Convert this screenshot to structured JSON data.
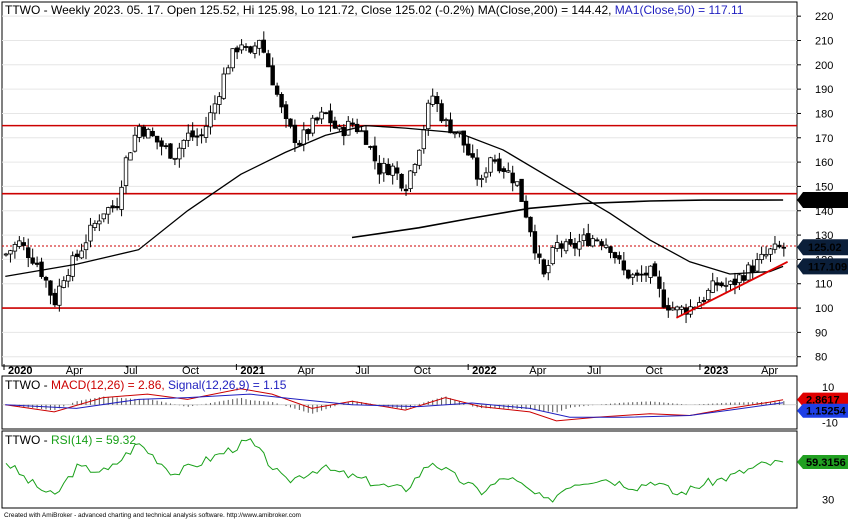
{
  "ticker": "TTWO",
  "header": {
    "part_1": "TTWO - Weekly 2023. 05. 17. Open 125.52, Hi 125.98, Lo 121.72, Close 125.02 (-0.2%) MA(Close,200) = 144.42, ",
    "part_2": "MA1(Close,50) = 117.11"
  },
  "macd_header": {
    "part_1": "TTWO - ",
    "part_2": "MACD(12,26) = 2.86, ",
    "part_3": "Signal(12,26,9) = 1.15"
  },
  "rsi_header": {
    "part_1": "TTWO - ",
    "part_2": "RSI(14) = 59.32"
  },
  "footer": "Created with AmiBroker - advanced charting and technical analysis software. http://www.amibroker.com",
  "colors": {
    "candle": "#000000",
    "ma200": "#000000",
    "ma50": "#000000",
    "support_resistance": "#cc0000",
    "trendline": "#dd0000",
    "macd": "#cc0000",
    "signal": "#1f1fbf",
    "rsi": "#19a019",
    "badge_close": "#0b1f3a",
    "badge_macd": "#e00000",
    "badge_signal": "#1e3fe6",
    "badge_rsi": "#22a022"
  },
  "chart_data": [
    {
      "panel": "price",
      "type": "candlestick",
      "ylim": [
        77,
        225
      ],
      "y_ticks": [
        80,
        90,
        100,
        110,
        120,
        130,
        140,
        150,
        160,
        170,
        180,
        190,
        200,
        210,
        220
      ],
      "x_labels": [
        "2020",
        "Apr",
        "Jul",
        "Oct",
        "2021",
        "Apr",
        "Jul",
        "Oct",
        "2022",
        "Apr",
        "Jul",
        "Oct",
        "2023",
        "Apr"
      ],
      "bold_x_labels": [
        "2020",
        "2021",
        "2022",
        "2023"
      ],
      "close_series": [
        [
          "2020-01-03",
          122
        ],
        [
          "2020-01-24",
          127
        ],
        [
          "2020-02-21",
          119
        ],
        [
          "2020-03-06",
          112
        ],
        [
          "2020-03-20",
          102
        ],
        [
          "2020-04-03",
          113
        ],
        [
          "2020-04-24",
          121
        ],
        [
          "2020-05-15",
          131
        ],
        [
          "2020-06-05",
          140
        ],
        [
          "2020-06-26",
          142
        ],
        [
          "2020-07-10",
          160
        ],
        [
          "2020-07-31",
          175
        ],
        [
          "2020-08-14",
          172
        ],
        [
          "2020-09-04",
          167
        ],
        [
          "2020-09-25",
          163
        ],
        [
          "2020-10-16",
          171
        ],
        [
          "2020-11-06",
          170
        ],
        [
          "2020-11-27",
          183
        ],
        [
          "2020-12-18",
          200
        ],
        [
          "2021-01-08",
          210
        ],
        [
          "2021-01-22",
          202
        ],
        [
          "2021-02-05",
          212
        ],
        [
          "2021-02-26",
          195
        ],
        [
          "2021-03-19",
          176
        ],
        [
          "2021-04-09",
          168
        ],
        [
          "2021-04-30",
          175
        ],
        [
          "2021-05-21",
          180
        ],
        [
          "2021-06-11",
          172
        ],
        [
          "2021-07-02",
          176
        ],
        [
          "2021-07-23",
          171
        ],
        [
          "2021-08-13",
          157
        ],
        [
          "2021-09-03",
          158
        ],
        [
          "2021-09-24",
          150
        ],
        [
          "2021-10-15",
          166
        ],
        [
          "2021-11-05",
          188
        ],
        [
          "2021-11-26",
          176
        ],
        [
          "2021-12-17",
          172
        ],
        [
          "2022-01-07",
          160
        ],
        [
          "2022-01-21",
          150
        ],
        [
          "2022-02-04",
          163
        ],
        [
          "2022-02-25",
          158
        ],
        [
          "2022-03-18",
          152
        ],
        [
          "2022-04-08",
          134
        ],
        [
          "2022-04-29",
          112
        ],
        [
          "2022-05-20",
          126
        ],
        [
          "2022-06-10",
          124
        ],
        [
          "2022-07-01",
          128
        ],
        [
          "2022-07-22",
          129
        ],
        [
          "2022-08-12",
          126
        ],
        [
          "2022-09-02",
          115
        ],
        [
          "2022-09-23",
          112
        ],
        [
          "2022-10-14",
          115
        ],
        [
          "2022-11-04",
          103
        ],
        [
          "2022-11-25",
          99
        ],
        [
          "2022-12-16",
          100
        ],
        [
          "2023-01-06",
          104
        ],
        [
          "2023-01-27",
          110
        ],
        [
          "2023-02-17",
          109
        ],
        [
          "2023-03-10",
          114
        ],
        [
          "2023-03-31",
          118
        ],
        [
          "2023-04-21",
          123
        ],
        [
          "2023-05-12",
          125
        ]
      ],
      "ma50_series": [
        [
          "2020-01-03",
          113
        ],
        [
          "2020-04-24",
          118
        ],
        [
          "2020-07-31",
          124
        ],
        [
          "2020-10-16",
          140
        ],
        [
          "2021-01-08",
          155
        ],
        [
          "2021-03-19",
          164
        ],
        [
          "2021-05-21",
          171
        ],
        [
          "2021-07-23",
          175
        ],
        [
          "2021-09-24",
          174
        ],
        [
          "2021-12-17",
          172
        ],
        [
          "2022-02-25",
          165
        ],
        [
          "2022-05-20",
          152
        ],
        [
          "2022-08-12",
          139
        ],
        [
          "2022-10-14",
          128
        ],
        [
          "2022-12-16",
          119
        ],
        [
          "2023-02-17",
          114
        ],
        [
          "2023-04-21",
          115
        ],
        [
          "2023-05-12",
          117.11
        ]
      ],
      "ma200_series": [
        [
          "2021-07-02",
          129
        ],
        [
          "2021-10-15",
          133
        ],
        [
          "2022-01-07",
          137
        ],
        [
          "2022-04-08",
          141
        ],
        [
          "2022-07-01",
          143
        ],
        [
          "2022-10-14",
          144
        ],
        [
          "2023-01-06",
          144.4
        ],
        [
          "2023-05-12",
          144.42
        ]
      ],
      "horizontal_lines": [
        {
          "value": 175,
          "style": "solid"
        },
        {
          "value": 147,
          "style": "solid"
        },
        {
          "value": 125.5,
          "style": "dotted"
        },
        {
          "value": 100,
          "style": "solid"
        }
      ],
      "trendline": [
        [
          "2022-11-25",
          96
        ],
        [
          "2023-05-19",
          119
        ]
      ],
      "value_badges": [
        "144.419",
        "125.02",
        "117.109"
      ],
      "last_values": {
        "open": 125.52,
        "high": 125.98,
        "low": 121.72,
        "close": 125.02,
        "ma200": 144.42,
        "ma50": 117.11
      }
    },
    {
      "panel": "macd",
      "type": "line",
      "ylim": [
        -13,
        15
      ],
      "y_ticks": [
        10,
        -10
      ],
      "series": [
        {
          "name": "MACD(12,26)",
          "color": "#cc0000",
          "values": [
            [
              "2020-01-03",
              0
            ],
            [
              "2020-03-20",
              -4
            ],
            [
              "2020-06-05",
              4
            ],
            [
              "2020-08-14",
              6
            ],
            [
              "2020-10-16",
              3
            ],
            [
              "2021-01-08",
              9
            ],
            [
              "2021-02-26",
              6
            ],
            [
              "2021-04-30",
              -2
            ],
            [
              "2021-07-02",
              2
            ],
            [
              "2021-09-24",
              -3
            ],
            [
              "2021-11-26",
              4
            ],
            [
              "2022-01-21",
              -1
            ],
            [
              "2022-04-08",
              -4
            ],
            [
              "2022-05-20",
              -9
            ],
            [
              "2022-07-22",
              -7
            ],
            [
              "2022-10-14",
              -5
            ],
            [
              "2022-12-16",
              -6
            ],
            [
              "2023-02-17",
              -2
            ],
            [
              "2023-04-21",
              1.5
            ],
            [
              "2023-05-12",
              2.86
            ]
          ]
        },
        {
          "name": "Signal(12,26,9)",
          "color": "#1f1fbf",
          "values": [
            [
              "2020-01-03",
              0
            ],
            [
              "2020-04-24",
              -2
            ],
            [
              "2020-07-31",
              3
            ],
            [
              "2020-10-16",
              4
            ],
            [
              "2021-01-22",
              6
            ],
            [
              "2021-04-09",
              3
            ],
            [
              "2021-07-02",
              0
            ],
            [
              "2021-10-15",
              -1
            ],
            [
              "2022-01-07",
              1
            ],
            [
              "2022-04-08",
              -2
            ],
            [
              "2022-06-10",
              -7
            ],
            [
              "2022-09-02",
              -7
            ],
            [
              "2022-12-16",
              -6
            ],
            [
              "2023-02-17",
              -3
            ],
            [
              "2023-05-12",
              1.15
            ]
          ]
        }
      ],
      "value_badges": [
        "2.8617",
        "1.15254"
      ]
    },
    {
      "panel": "rsi",
      "type": "line",
      "ylim": [
        25,
        82
      ],
      "y_ticks": [
        30
      ],
      "series": [
        {
          "name": "RSI(14)",
          "color": "#19a019",
          "values": [
            [
              "2020-01-03",
              60
            ],
            [
              "2020-02-07",
              45
            ],
            [
              "2020-03-20",
              32
            ],
            [
              "2020-04-24",
              55
            ],
            [
              "2020-06-12",
              52
            ],
            [
              "2020-07-31",
              74
            ],
            [
              "2020-09-25",
              50
            ],
            [
              "2020-11-20",
              62
            ],
            [
              "2021-01-22",
              76
            ],
            [
              "2021-03-19",
              44
            ],
            [
              "2021-05-14",
              55
            ],
            [
              "2021-07-02",
              48
            ],
            [
              "2021-08-27",
              40
            ],
            [
              "2021-09-24",
              38
            ],
            [
              "2021-11-05",
              60
            ],
            [
              "2021-12-17",
              46
            ],
            [
              "2022-01-21",
              36
            ],
            [
              "2022-03-04",
              48
            ],
            [
              "2022-05-06",
              28
            ],
            [
              "2022-06-10",
              42
            ],
            [
              "2022-07-29",
              47
            ],
            [
              "2022-09-23",
              40
            ],
            [
              "2022-10-21",
              45
            ],
            [
              "2022-11-25",
              34
            ],
            [
              "2023-01-06",
              42
            ],
            [
              "2023-02-17",
              48
            ],
            [
              "2023-04-07",
              57
            ],
            [
              "2023-05-12",
              59.32
            ]
          ]
        }
      ],
      "value_badges": [
        "59.3156"
      ]
    }
  ]
}
